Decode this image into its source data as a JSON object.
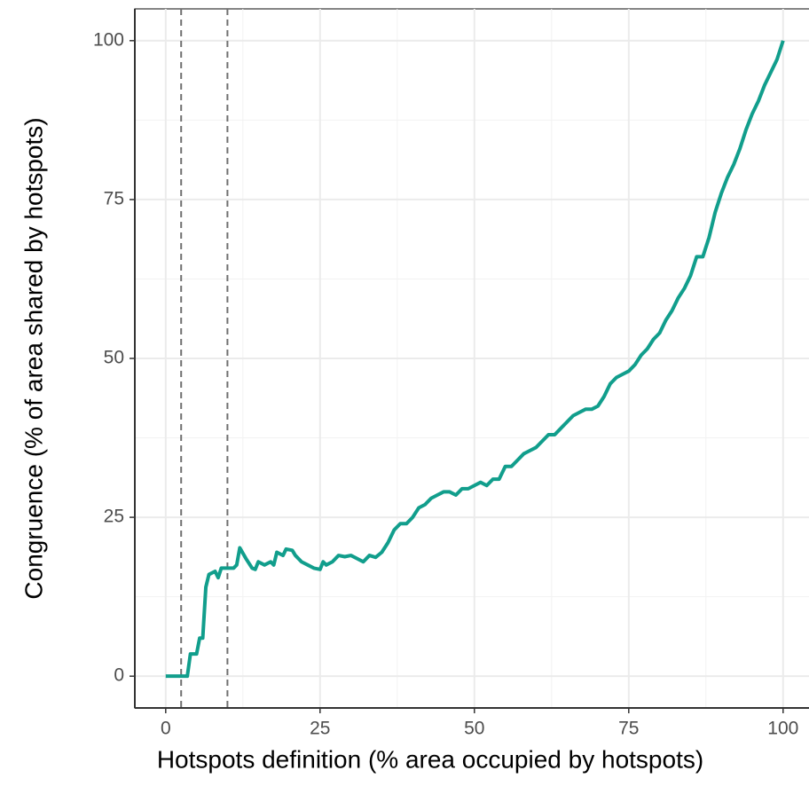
{
  "chart_data": {
    "type": "line",
    "x_label": "Hotspots definition (% area occupied by hotspots)",
    "y_label": "Congruence (% of area shared by hotspots)",
    "x": [
      0,
      1,
      2,
      3.5,
      4,
      5,
      5.5,
      6,
      6.5,
      7,
      8,
      8.5,
      9,
      10,
      11,
      11.5,
      12,
      13,
      14,
      14.5,
      15,
      16,
      17,
      17.5,
      18,
      19,
      19.5,
      20.5,
      21,
      22,
      23,
      24,
      25,
      25.5,
      26,
      27,
      28,
      29,
      30,
      31,
      32,
      33,
      34,
      35,
      36,
      37,
      38,
      39,
      40,
      41,
      42,
      43,
      44,
      45,
      46,
      47,
      48,
      49,
      50,
      51,
      52,
      53,
      54,
      55,
      56,
      57,
      58,
      59,
      60,
      61,
      62,
      63,
      64,
      65,
      66,
      67,
      68,
      69,
      70,
      71,
      72,
      73,
      74,
      75,
      76,
      77,
      78,
      79,
      80,
      81,
      82,
      83,
      84,
      85,
      86,
      87,
      88,
      89,
      90,
      91,
      92,
      93,
      94,
      95,
      96,
      97,
      98,
      99,
      100
    ],
    "series": [
      {
        "name": "Congruence",
        "color": "#119e8c",
        "values": [
          0,
          0,
          0,
          0,
          3.5,
          3.5,
          6,
          6,
          14,
          16,
          16.5,
          15.5,
          17,
          17,
          17,
          17.5,
          20.2,
          18.5,
          17,
          16.8,
          18,
          17.5,
          18,
          17.5,
          19.5,
          19,
          20,
          19.8,
          19,
          18,
          17.5,
          17,
          16.8,
          18,
          17.5,
          18,
          19,
          18.8,
          19,
          18.5,
          18,
          19,
          18.7,
          19.5,
          21,
          23,
          24,
          24,
          25,
          26.5,
          27,
          28,
          28.5,
          29,
          29,
          28.5,
          29.5,
          29.5,
          30,
          30.5,
          30,
          31,
          31,
          33,
          33,
          34,
          35,
          35.5,
          36,
          37,
          38,
          38,
          39,
          40,
          41,
          41.5,
          42,
          42,
          42.5,
          44,
          46,
          47,
          47.5,
          48,
          49,
          50.5,
          51.5,
          53,
          54,
          56,
          57.5,
          59.5,
          61,
          63,
          66,
          66,
          69,
          73,
          76,
          78.5,
          80.5,
          83,
          86,
          88.5,
          90.5,
          93,
          95,
          97,
          100
        ]
      }
    ],
    "vlines": [
      2.5,
      10
    ],
    "xlim": [
      -5,
      105
    ],
    "ylim": [
      -5,
      105
    ],
    "xticks": [
      0,
      25,
      50,
      75,
      100
    ],
    "yticks": [
      0,
      25,
      50,
      75,
      100
    ],
    "grid": true
  }
}
